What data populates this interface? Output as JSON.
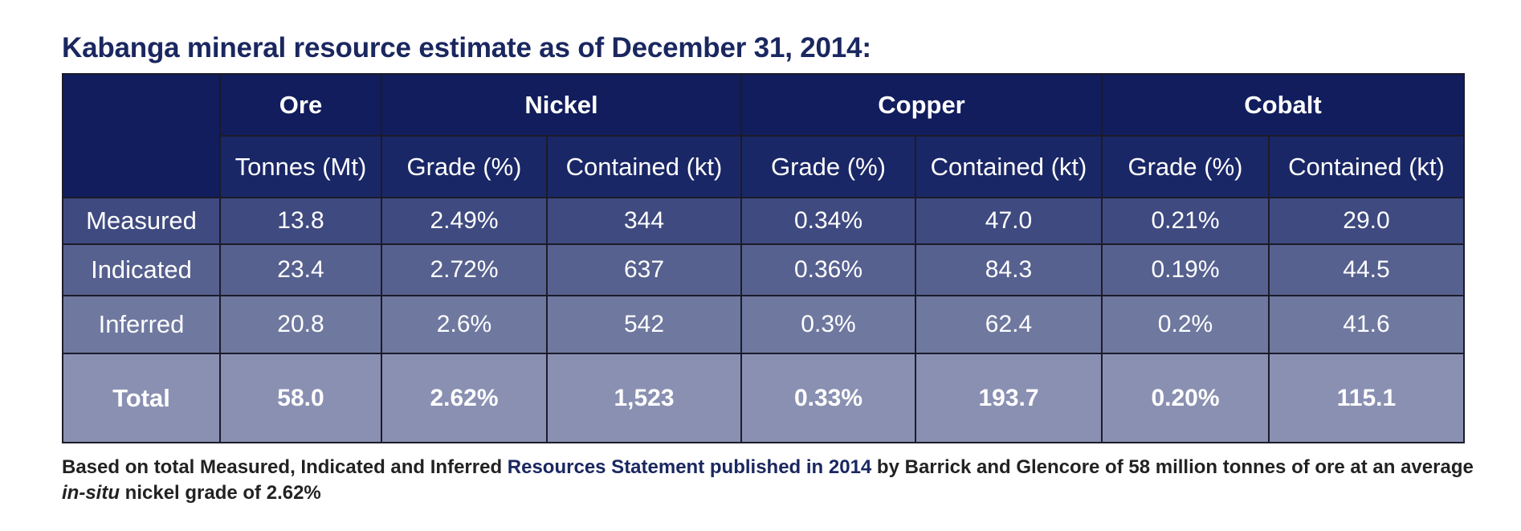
{
  "title": "Kabanga mineral resource estimate as of December 31, 2014:",
  "table": {
    "groups": [
      "Ore",
      "Nickel",
      "Copper",
      "Cobalt"
    ],
    "subheaders": [
      "Tonnes (Mt)",
      "Grade (%)",
      "Contained (kt)",
      "Grade (%)",
      "Contained (kt)",
      "Grade (%)",
      "Contained (kt)"
    ],
    "rows": [
      {
        "label": "Measured",
        "cells": [
          "13.8",
          "2.49%",
          "344",
          "0.34%",
          "47.0",
          "0.21%",
          "29.0"
        ]
      },
      {
        "label": "Indicated",
        "cells": [
          "23.4",
          "2.72%",
          "637",
          "0.36%",
          "84.3",
          "0.19%",
          "44.5"
        ]
      },
      {
        "label": "Inferred",
        "cells": [
          "20.8",
          "2.6%",
          "542",
          "0.3%",
          "62.4",
          "0.2%",
          "41.6"
        ]
      },
      {
        "label": "Total",
        "cells": [
          "58.0",
          "2.62%",
          "1,523",
          "0.33%",
          "193.7",
          "0.20%",
          "115.1"
        ]
      }
    ]
  },
  "footnote": {
    "part1": "Based on total Measured, Indicated and Inferred ",
    "link": "Resources Statement published in 2014",
    "part2": " by Barrick and Glencore of 58 million tonnes of ore at an average ",
    "italic": "in-situ",
    "part3": " nickel grade of 2.62%"
  },
  "colors": {
    "title": "#1a2760",
    "header_dark": "#111d5c",
    "row_measured": "#3f4a80",
    "row_indicated": "#57618f",
    "row_inferred": "#6f789f",
    "row_total": "#8a90b2"
  }
}
